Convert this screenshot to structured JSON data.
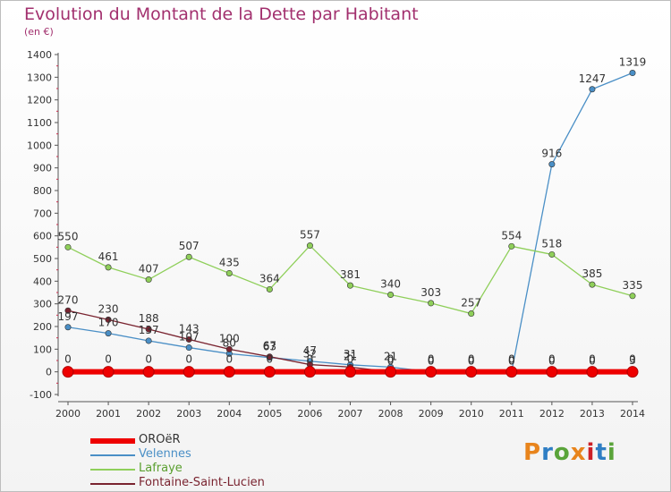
{
  "header": {
    "title": "Evolution du Montant de la Dette par Habitant",
    "unit": "(en €)"
  },
  "brand": {
    "text": "Proxiti",
    "colors": [
      "#e8841c",
      "#2f7ec4",
      "#5aa43a",
      "#e8841c",
      "#cc2027",
      "#2f7ec4",
      "#5aa43a"
    ]
  },
  "chart_data": {
    "type": "line",
    "title": "Evolution du Montant de la Dette par Habitant",
    "subtitle": "(en €)",
    "xlabel": "",
    "ylabel": "",
    "ylim": [
      -100,
      1400
    ],
    "yticks": [
      -100,
      0,
      100,
      200,
      300,
      400,
      500,
      600,
      700,
      800,
      900,
      1000,
      1100,
      1200,
      1300,
      1400
    ],
    "x": [
      "2000",
      "2001",
      "2002",
      "2003",
      "2004",
      "2005",
      "2006",
      "2007",
      "2008",
      "2009",
      "2010",
      "2011",
      "2012",
      "2013",
      "2014"
    ],
    "grid": false,
    "legend_position": "bottom-left",
    "series": [
      {
        "name": "OROëR",
        "color": "#ee0000",
        "values": [
          0,
          0,
          0,
          0,
          0,
          0,
          0,
          0,
          0,
          0,
          0,
          0,
          0,
          0,
          0
        ]
      },
      {
        "name": "Velennes",
        "color": "#4a8fc6",
        "values": [
          197,
          170,
          137,
          107,
          80,
          63,
          47,
          31,
          21,
          0,
          0,
          0,
          916,
          1247,
          1319
        ]
      },
      {
        "name": "Lafraye",
        "color": "#8fcf5a",
        "values": [
          550,
          461,
          407,
          507,
          435,
          364,
          557,
          381,
          340,
          303,
          257,
          554,
          518,
          385,
          335
        ]
      },
      {
        "name": "Fontaine-Saint-Lucien",
        "color": "#7a2430",
        "values": [
          270,
          230,
          188,
          143,
          100,
          67,
          32,
          21,
          0,
          0,
          0,
          0,
          0,
          0,
          3
        ]
      }
    ]
  }
}
